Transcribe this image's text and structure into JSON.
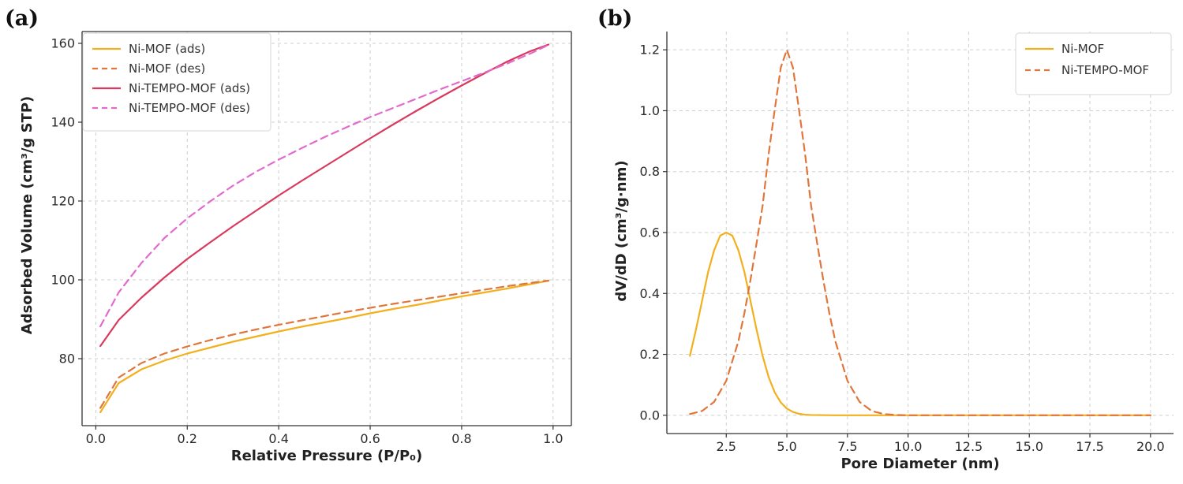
{
  "chart_data": [
    {
      "panel_label": "(a)",
      "type": "line",
      "title": "",
      "xlabel": "Relative Pressure (P/P₀)",
      "ylabel": "Adsorbed Volume (cm³/g STP)",
      "xlim": [
        -0.03,
        1.04
      ],
      "ylim": [
        63,
        163
      ],
      "xticks": [
        0.0,
        0.2,
        0.4,
        0.6,
        0.8,
        1.0
      ],
      "xtick_labels": [
        "0.0",
        "0.2",
        "0.4",
        "0.6",
        "0.8",
        "1.0"
      ],
      "yticks": [
        80,
        100,
        120,
        140,
        160
      ],
      "ytick_labels": [
        "80",
        "100",
        "120",
        "140",
        "160"
      ],
      "grid": true,
      "legend_position": "top-left",
      "series": [
        {
          "name": "Ni-MOF (ads)",
          "color": "#F2B01E",
          "style": "solid",
          "x": [
            0.01,
            0.05,
            0.1,
            0.15,
            0.2,
            0.25,
            0.3,
            0.35,
            0.4,
            0.45,
            0.5,
            0.55,
            0.6,
            0.65,
            0.7,
            0.75,
            0.8,
            0.85,
            0.9,
            0.95,
            0.99
          ],
          "y": [
            66.4,
            73.8,
            77.3,
            79.5,
            81.3,
            82.8,
            84.3,
            85.6,
            86.9,
            88.1,
            89.2,
            90.3,
            91.5,
            92.6,
            93.6,
            94.7,
            95.8,
            96.8,
            97.8,
            98.9,
            99.8
          ]
        },
        {
          "name": "Ni-MOF (des)",
          "color": "#E0763B",
          "style": "dashed",
          "x": [
            0.01,
            0.05,
            0.1,
            0.15,
            0.2,
            0.25,
            0.3,
            0.35,
            0.4,
            0.45,
            0.5,
            0.55,
            0.6,
            0.65,
            0.7,
            0.75,
            0.8,
            0.85,
            0.9,
            0.95,
            0.99
          ],
          "y": [
            67.5,
            75.2,
            78.9,
            81.3,
            83.1,
            84.7,
            86.1,
            87.4,
            88.6,
            89.7,
            90.8,
            91.9,
            92.9,
            93.9,
            94.8,
            95.7,
            96.6,
            97.5,
            98.4,
            99.2,
            99.8
          ]
        },
        {
          "name": "Ni-TEMPO-MOF (ads)",
          "color": "#D83A5E",
          "style": "solid",
          "x": [
            0.01,
            0.05,
            0.1,
            0.15,
            0.2,
            0.25,
            0.3,
            0.35,
            0.4,
            0.45,
            0.5,
            0.55,
            0.6,
            0.65,
            0.7,
            0.75,
            0.8,
            0.85,
            0.9,
            0.95,
            0.99
          ],
          "y": [
            83.2,
            89.8,
            95.5,
            100.6,
            105.3,
            109.5,
            113.6,
            117.5,
            121.4,
            125.1,
            128.7,
            132.3,
            135.9,
            139.4,
            142.8,
            146.1,
            149.3,
            152.4,
            155.4,
            158.0,
            159.7
          ]
        },
        {
          "name": "Ni-TEMPO-MOF (des)",
          "color": "#E36ACD",
          "style": "dashed",
          "x": [
            0.01,
            0.05,
            0.1,
            0.15,
            0.2,
            0.25,
            0.3,
            0.35,
            0.4,
            0.45,
            0.5,
            0.55,
            0.6,
            0.65,
            0.7,
            0.75,
            0.8,
            0.85,
            0.9,
            0.95,
            0.99
          ],
          "y": [
            88.2,
            96.8,
            104.3,
            110.6,
            115.6,
            119.9,
            123.9,
            127.4,
            130.5,
            133.4,
            136.2,
            138.8,
            141.3,
            143.6,
            145.9,
            148.2,
            150.4,
            152.6,
            154.9,
            157.4,
            159.6
          ]
        }
      ]
    },
    {
      "panel_label": "(b)",
      "type": "line",
      "title": "",
      "xlabel": "Pore Diameter (nm)",
      "ylabel": "dV/dD (cm³/g·nm)",
      "xlim": [
        0.05,
        20.95
      ],
      "ylim": [
        -0.06,
        1.26
      ],
      "xticks": [
        2.5,
        5.0,
        7.5,
        10.0,
        12.5,
        15.0,
        17.5,
        20.0
      ],
      "xtick_labels": [
        "2.5",
        "5.0",
        "7.5",
        "10.0",
        "12.5",
        "15.0",
        "17.5",
        "20.0"
      ],
      "yticks": [
        0.0,
        0.2,
        0.4,
        0.6,
        0.8,
        1.0,
        1.2
      ],
      "ytick_labels": [
        "0.0",
        "0.2",
        "0.4",
        "0.6",
        "0.8",
        "1.0",
        "1.2"
      ],
      "grid": true,
      "legend_position": "top-right",
      "series": [
        {
          "name": "Ni-MOF",
          "color": "#F2B01E",
          "style": "solid",
          "x": [
            1.0,
            1.25,
            1.5,
            1.75,
            2.0,
            2.25,
            2.5,
            2.75,
            3.0,
            3.25,
            3.5,
            3.75,
            4.0,
            4.25,
            4.5,
            4.75,
            5.0,
            5.25,
            5.5,
            5.75,
            6.0,
            7.0,
            8.0,
            10.0,
            12.5,
            15.0,
            17.5,
            20.0
          ],
          "y": [
            0.195,
            0.281,
            0.375,
            0.47,
            0.542,
            0.59,
            0.6,
            0.59,
            0.542,
            0.47,
            0.375,
            0.281,
            0.195,
            0.125,
            0.075,
            0.042,
            0.022,
            0.011,
            0.005,
            0.002,
            0.001,
            0.0,
            0.0,
            0.0,
            0.0,
            0.0,
            0.0,
            0.0
          ]
        },
        {
          "name": "Ni-TEMPO-MOF",
          "color": "#E0763B",
          "style": "dashed",
          "x": [
            1.0,
            1.5,
            2.0,
            2.5,
            3.0,
            3.25,
            3.5,
            3.75,
            4.0,
            4.25,
            4.5,
            4.75,
            5.0,
            5.25,
            5.5,
            5.75,
            6.0,
            6.25,
            6.5,
            6.75,
            7.0,
            7.5,
            8.0,
            8.5,
            9.0,
            9.5,
            10.0,
            12.5,
            15.0,
            17.5,
            20.0
          ],
          "y": [
            0.004,
            0.014,
            0.044,
            0.113,
            0.243,
            0.336,
            0.445,
            0.565,
            0.688,
            0.859,
            1.004,
            1.142,
            1.2,
            1.142,
            1.004,
            0.859,
            0.688,
            0.565,
            0.445,
            0.336,
            0.243,
            0.113,
            0.044,
            0.014,
            0.004,
            0.001,
            0.0,
            0.0,
            0.0,
            0.0,
            0.0
          ]
        }
      ]
    }
  ]
}
